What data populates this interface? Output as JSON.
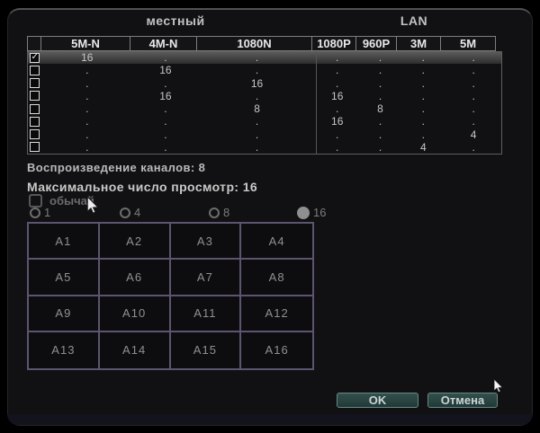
{
  "sections": {
    "local": "местный",
    "lan": "LAN"
  },
  "table": {
    "columns": [
      "5M-N",
      "4M-N",
      "1080N",
      "1080P",
      "960P",
      "3M",
      "5M"
    ],
    "rows": [
      {
        "checked": true,
        "selected": true,
        "values": [
          "16",
          ".",
          ".",
          ".",
          ".",
          ".",
          "."
        ]
      },
      {
        "checked": false,
        "selected": false,
        "values": [
          ".",
          "16",
          ".",
          ".",
          ".",
          ".",
          "."
        ]
      },
      {
        "checked": false,
        "selected": false,
        "values": [
          ".",
          ".",
          "16",
          ".",
          ".",
          ".",
          "."
        ]
      },
      {
        "checked": false,
        "selected": false,
        "values": [
          ".",
          "16",
          ".",
          "16",
          ".",
          ".",
          "."
        ]
      },
      {
        "checked": false,
        "selected": false,
        "values": [
          ".",
          ".",
          "8",
          ".",
          "8",
          ".",
          "."
        ]
      },
      {
        "checked": false,
        "selected": false,
        "values": [
          ".",
          ".",
          ".",
          "16",
          ".",
          ".",
          "."
        ]
      },
      {
        "checked": false,
        "selected": false,
        "values": [
          ".",
          ".",
          ".",
          ".",
          ".",
          ".",
          "4"
        ]
      },
      {
        "checked": false,
        "selected": false,
        "values": [
          ".",
          ".",
          ".",
          ".",
          ".",
          "4",
          "."
        ]
      }
    ]
  },
  "info": {
    "playback": "Воспроизведение каналов: 8",
    "max_view": "Максимальное число просмотр: 16"
  },
  "custom_checkbox": {
    "label": "обычай",
    "checked": false
  },
  "view_radios": [
    {
      "label": "1",
      "selected": false
    },
    {
      "label": "4",
      "selected": false
    },
    {
      "label": "8",
      "selected": false
    },
    {
      "label": "16",
      "selected": true
    }
  ],
  "channel_grid": [
    "A1",
    "A2",
    "A3",
    "A4",
    "A5",
    "A6",
    "A7",
    "A8",
    "A9",
    "A10",
    "A11",
    "A12",
    "A13",
    "A14",
    "A15",
    "A16"
  ],
  "buttons": {
    "ok": "OK",
    "cancel": "Отмена"
  },
  "icons": {
    "cursor_large": "mouse-arrow",
    "cursor_small": "mouse-arrow",
    "check": "checkmark"
  },
  "colors": {
    "button_bg": "#2b4543",
    "button_border": "#688784",
    "grid_border": "#5d5470",
    "row_highlight": "#4f4f4f",
    "dialog_bg": "#111113"
  }
}
